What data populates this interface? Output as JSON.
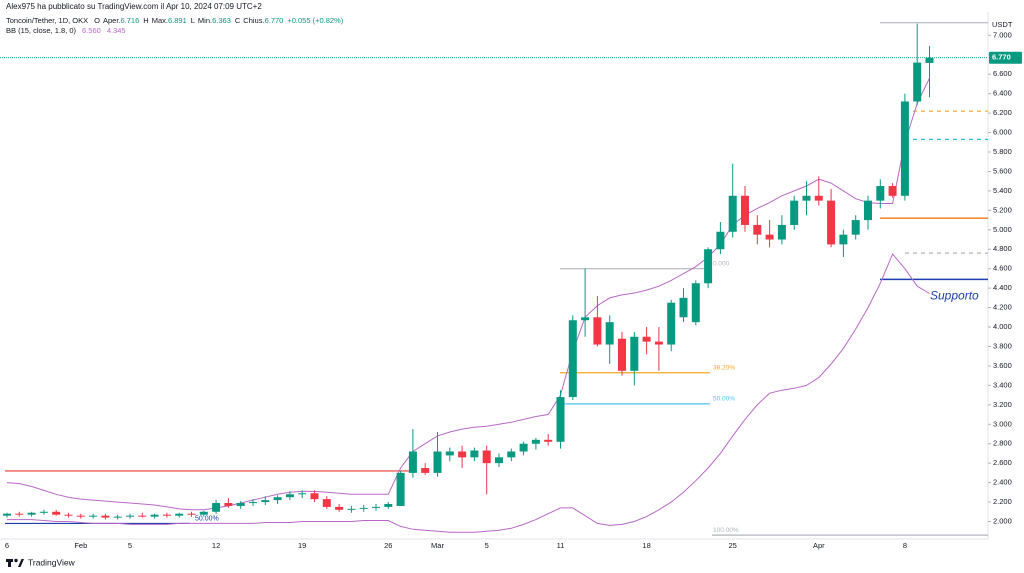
{
  "chart_data": {
    "type": "candlestick",
    "publisher": "Alex975 ha pubblicato su TradingView.com il Apr 10, 2024 07:09 UTC+2",
    "symbol": "Toncoin/Tether, 1D, OKX",
    "ohlc_legend": [
      {
        "key": "O",
        "label": "Aper.",
        "value": "6.716"
      },
      {
        "key": "H",
        "label": "Max.",
        "value": "6.891"
      },
      {
        "key": "L",
        "label": "Min.",
        "value": "6.363"
      },
      {
        "key": "C",
        "label": "Chius.",
        "value": "6.770"
      }
    ],
    "change": "+0.055 (+0.82%)",
    "currency": "USDT",
    "footer": "TradingView",
    "up_color": "#089981",
    "down_color": "#f23645",
    "categories": [
      "6",
      null,
      null,
      null,
      null,
      null,
      "Feb",
      null,
      null,
      null,
      "5",
      null,
      null,
      null,
      null,
      null,
      null,
      "12",
      null,
      null,
      null,
      null,
      null,
      null,
      "19",
      null,
      null,
      null,
      null,
      null,
      null,
      "26",
      null,
      null,
      null,
      "Mar",
      null,
      null,
      null,
      "5",
      null,
      null,
      null,
      null,
      null,
      "11",
      null,
      null,
      null,
      null,
      null,
      null,
      "18",
      null,
      null,
      null,
      null,
      null,
      null,
      "25",
      null,
      null,
      null,
      null,
      null,
      null,
      "Apr",
      null,
      null,
      null,
      null,
      null,
      null,
      "8",
      null,
      null
    ],
    "open": [
      2.06,
      2.08,
      2.07,
      2.09,
      2.1,
      2.07,
      2.06,
      2.05,
      2.06,
      2.04,
      2.05,
      2.06,
      2.05,
      2.07,
      2.06,
      2.08,
      2.07,
      2.1,
      2.19,
      2.16,
      2.19,
      2.2,
      2.22,
      2.25,
      2.28,
      2.29,
      2.23,
      2.15,
      2.12,
      2.13,
      2.14,
      2.15,
      2.16,
      2.5,
      2.55,
      2.5,
      2.68,
      2.72,
      2.66,
      2.73,
      2.6,
      2.66,
      2.72,
      2.8,
      2.84,
      2.82,
      3.28,
      4.07,
      4.1,
      3.82,
      3.88,
      3.55,
      3.9,
      3.85,
      3.82,
      4.1,
      4.05,
      4.45,
      4.8,
      4.98,
      5.35,
      5.05,
      4.95,
      4.9,
      5.05,
      5.3,
      5.35,
      5.3,
      4.85,
      4.95,
      5.1,
      5.3,
      5.45,
      5.35,
      6.32,
      6.716
    ],
    "high": [
      2.09,
      2.1,
      2.1,
      2.12,
      2.12,
      2.09,
      2.08,
      2.08,
      2.08,
      2.07,
      2.08,
      2.09,
      2.08,
      2.09,
      2.09,
      2.1,
      2.11,
      2.22,
      2.24,
      2.21,
      2.23,
      2.26,
      2.27,
      2.31,
      2.32,
      2.32,
      2.26,
      2.18,
      2.16,
      2.17,
      2.18,
      2.2,
      2.52,
      2.95,
      2.6,
      2.92,
      2.76,
      2.78,
      2.76,
      2.78,
      2.7,
      2.75,
      2.82,
      2.86,
      2.9,
      3.35,
      4.12,
      4.6,
      4.32,
      4.12,
      3.95,
      3.95,
      4.0,
      4.0,
      4.28,
      4.4,
      4.48,
      4.82,
      5.08,
      5.68,
      5.45,
      5.15,
      5.1,
      5.15,
      5.35,
      5.5,
      5.55,
      5.42,
      5.0,
      5.15,
      5.35,
      5.52,
      5.48,
      6.4,
      7.12,
      6.891
    ],
    "low": [
      2.04,
      2.05,
      2.05,
      2.07,
      2.06,
      2.04,
      2.03,
      2.03,
      2.02,
      2.02,
      2.03,
      2.04,
      2.03,
      2.04,
      2.04,
      2.05,
      2.05,
      2.08,
      2.14,
      2.13,
      2.16,
      2.17,
      2.18,
      2.22,
      2.24,
      2.2,
      2.13,
      2.1,
      2.09,
      2.1,
      2.11,
      2.13,
      2.16,
      2.45,
      2.48,
      2.46,
      2.62,
      2.55,
      2.62,
      2.28,
      2.56,
      2.62,
      2.68,
      2.74,
      2.78,
      2.75,
      3.25,
      3.9,
      3.8,
      3.62,
      3.5,
      3.4,
      3.72,
      3.55,
      3.75,
      4.05,
      4.02,
      4.4,
      4.75,
      4.92,
      4.98,
      4.85,
      4.82,
      4.85,
      5.0,
      5.15,
      5.25,
      4.82,
      4.72,
      4.9,
      5.0,
      5.22,
      5.33,
      5.3,
      6.28,
      6.363
    ],
    "close": [
      2.08,
      2.07,
      2.09,
      2.1,
      2.07,
      2.06,
      2.05,
      2.06,
      2.04,
      2.05,
      2.06,
      2.05,
      2.07,
      2.06,
      2.08,
      2.07,
      2.1,
      2.19,
      2.16,
      2.19,
      2.2,
      2.22,
      2.25,
      2.28,
      2.29,
      2.23,
      2.15,
      2.12,
      2.13,
      2.14,
      2.15,
      2.18,
      2.5,
      2.72,
      2.5,
      2.72,
      2.72,
      2.66,
      2.73,
      2.6,
      2.66,
      2.72,
      2.8,
      2.84,
      2.82,
      3.28,
      4.07,
      4.1,
      3.82,
      4.05,
      3.55,
      3.9,
      3.85,
      3.82,
      4.25,
      4.3,
      4.45,
      4.8,
      4.98,
      5.35,
      5.05,
      4.95,
      4.9,
      5.05,
      5.3,
      5.35,
      5.3,
      4.85,
      4.95,
      5.1,
      5.3,
      5.45,
      5.35,
      6.32,
      6.72,
      6.77
    ],
    "indicator": {
      "label": "BB (15, close, 1.8, 0)",
      "color": "#ba68c8",
      "last": [
        "6.560",
        "4.345"
      ],
      "upper": [
        2.4,
        2.39,
        2.36,
        2.32,
        2.28,
        2.25,
        2.23,
        2.22,
        2.21,
        2.2,
        2.19,
        2.18,
        2.17,
        2.15,
        2.13,
        2.12,
        2.12,
        2.14,
        2.16,
        2.19,
        2.22,
        2.25,
        2.28,
        2.3,
        2.31,
        2.31,
        2.3,
        2.29,
        2.28,
        2.28,
        2.28,
        2.28,
        2.55,
        2.72,
        2.8,
        2.88,
        2.92,
        2.95,
        2.97,
        2.98,
        3.0,
        3.02,
        3.05,
        3.08,
        3.1,
        3.3,
        3.75,
        4.1,
        4.22,
        4.3,
        4.33,
        4.35,
        4.38,
        4.42,
        4.48,
        4.55,
        4.62,
        4.72,
        4.85,
        5.05,
        5.15,
        5.22,
        5.28,
        5.35,
        5.4,
        5.45,
        5.52,
        5.48,
        5.4,
        5.32,
        5.28,
        5.27,
        5.27,
        5.9,
        6.3,
        6.56
      ],
      "lower": [
        2.02,
        2.02,
        2.02,
        2.01,
        2.0,
        2.0,
        1.99,
        1.98,
        1.98,
        1.98,
        1.97,
        1.97,
        1.97,
        1.97,
        1.98,
        1.98,
        1.98,
        1.98,
        1.98,
        1.98,
        1.98,
        1.99,
        1.99,
        1.99,
        2.0,
        2.0,
        2.0,
        2.0,
        2.0,
        2.01,
        2.01,
        2.01,
        1.95,
        1.92,
        1.91,
        1.9,
        1.89,
        1.89,
        1.89,
        1.9,
        1.91,
        1.93,
        1.97,
        2.02,
        2.08,
        2.14,
        2.14,
        2.06,
        1.98,
        1.96,
        1.97,
        2.0,
        2.05,
        2.12,
        2.2,
        2.3,
        2.42,
        2.55,
        2.7,
        2.88,
        3.05,
        3.2,
        3.32,
        3.35,
        3.37,
        3.4,
        3.48,
        3.62,
        3.78,
        3.98,
        4.2,
        4.45,
        4.75,
        4.6,
        4.42,
        4.345
      ]
    },
    "current_price": {
      "value": 6.77,
      "label": "6.770",
      "color": "#089981"
    },
    "levels": [
      {
        "value": 2.52,
        "color": "#e53935"
      },
      {
        "value": 1.98,
        "color": "#1e3fa8",
        "label": "50.00%"
      },
      {
        "value": 4.6,
        "color": "#b2b5be",
        "label": "0.000"
      },
      {
        "value": 3.53,
        "color": "#f5a623",
        "label": "38.20%"
      },
      {
        "value": 3.21,
        "color": "#4fc3f7",
        "label": "50.00%"
      },
      {
        "value": 1.86,
        "color": "#b2b5be",
        "label": "100.00%"
      },
      {
        "value": 7.13,
        "color": "#b2b5be"
      },
      {
        "value": 6.22,
        "color": "#f5a623",
        "dashed": true
      },
      {
        "value": 5.93,
        "color": "#26c6da",
        "dashed": true
      },
      {
        "value": 5.12,
        "color": "#ef6c00"
      },
      {
        "value": 4.76,
        "color": "#b2b5be",
        "dashed": true
      },
      {
        "value": 4.49,
        "color": "#1e40af",
        "label": "Supporto"
      }
    ],
    "ylim": [
      1.82,
      7.24
    ],
    "yticks": [
      {
        "value": 2,
        "label": "2.000"
      },
      {
        "value": 2.2,
        "label": "2.200"
      },
      {
        "value": 2.4,
        "label": "2.400"
      },
      {
        "value": 2.6,
        "label": "2.600"
      },
      {
        "value": 2.8,
        "label": "2.800"
      },
      {
        "value": 3,
        "label": "3.000"
      },
      {
        "value": 3.2,
        "label": "3.200"
      },
      {
        "value": 3.4,
        "label": "3.400"
      },
      {
        "value": 3.6,
        "label": "3.600"
      },
      {
        "value": 3.8,
        "label": "3.800"
      },
      {
        "value": 4,
        "label": "4.000"
      },
      {
        "value": 4.2,
        "label": "4.200"
      },
      {
        "value": 4.4,
        "label": "4.400"
      },
      {
        "value": 4.6,
        "label": "4.600"
      },
      {
        "value": 4.8,
        "label": "4.800"
      },
      {
        "value": 5,
        "label": "5.000"
      },
      {
        "value": 5.2,
        "label": "5.200"
      },
      {
        "value": 5.4,
        "label": "5.400"
      },
      {
        "value": 5.6,
        "label": "5.600"
      },
      {
        "value": 5.8,
        "label": "5.800"
      },
      {
        "value": 6,
        "label": "6.000"
      },
      {
        "value": 6.2,
        "label": "6.200"
      },
      {
        "value": 6.4,
        "label": "6.400"
      },
      {
        "value": 6.6,
        "label": "6.600"
      },
      {
        "value": 6.8,
        "label": "6.800"
      },
      {
        "value": 7,
        "label": "7.000"
      }
    ]
  }
}
